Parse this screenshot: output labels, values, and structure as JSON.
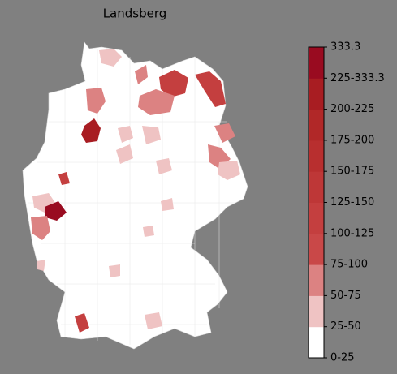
{
  "title": "Landsberg",
  "legend": {
    "labels": [
      "0-25",
      "25-50",
      "50-75",
      "75-100",
      "100-125",
      "125-150",
      "150-175",
      "175-200",
      "200-225",
      "225-333.3",
      "333.3"
    ],
    "colors": [
      "#ffffff",
      "#efc3c3",
      "#dc8282",
      "#c94848",
      "#c43f3f",
      "#be3737",
      "#b82f2f",
      "#b12828",
      "#a81d22",
      "#990b20"
    ]
  }
}
